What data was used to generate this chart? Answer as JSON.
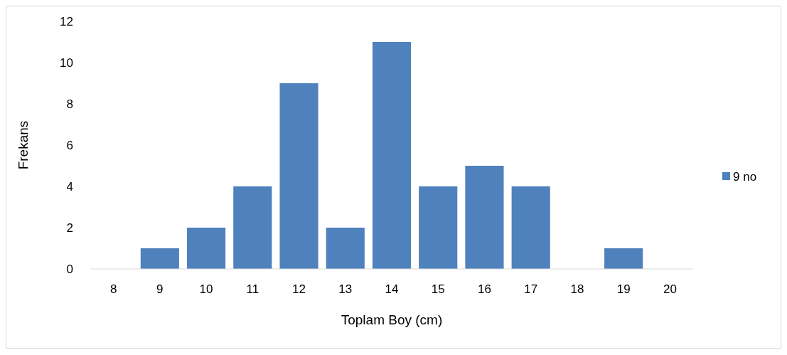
{
  "chart_data": {
    "type": "bar",
    "xlabel": "Toplam Boy (cm)",
    "ylabel": "Frekans",
    "categories": [
      "8",
      "9",
      "10",
      "11",
      "12",
      "13",
      "14",
      "15",
      "16",
      "17",
      "18",
      "19",
      "20"
    ],
    "series": [
      {
        "name": "9 no",
        "color": "#4f81bd",
        "values": [
          0,
          1,
          2,
          4,
          9,
          2,
          11,
          4,
          5,
          4,
          0,
          1,
          0
        ]
      }
    ],
    "ylim": [
      0,
      12
    ],
    "yticks": [
      0,
      2,
      4,
      6,
      8,
      10,
      12
    ],
    "grid": false,
    "legend": "right"
  }
}
